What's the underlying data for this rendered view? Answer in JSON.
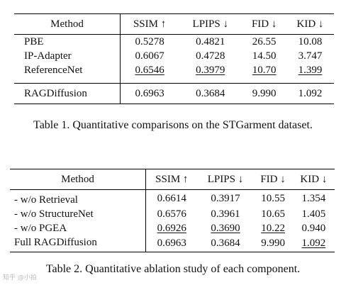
{
  "table1": {
    "headers": [
      "Method",
      "SSIM ↑",
      "LPIPS ↓",
      "FID ↓",
      "KID ↓"
    ],
    "rows": [
      {
        "method": "PBE",
        "ssim": "0.5278",
        "lpips": "0.4821",
        "fid": "26.55",
        "kid": "10.08"
      },
      {
        "method": "IP-Adapter",
        "ssim": "0.6067",
        "lpips": "0.4728",
        "fid": "14.50",
        "kid": "3.747"
      },
      {
        "method": "ReferenceNet",
        "ssim": "0.6546",
        "lpips": "0.3979",
        "fid": "10.70",
        "kid": "1.399"
      }
    ],
    "best": {
      "method": "RAGDiffusion",
      "ssim": "0.6963",
      "lpips": "0.3684",
      "fid": "9.990",
      "kid": "1.092"
    },
    "caption": "Table 1. Quantitative comparisons on the STGarment dataset."
  },
  "table2": {
    "headers": [
      "Method",
      "SSIM ↑",
      "LPIPS ↓",
      "FID ↓",
      "KID ↓"
    ],
    "rows": [
      {
        "method": "- w/o Retrieval",
        "ssim": "0.6614",
        "lpips": "0.3917",
        "fid": "10.55",
        "kid": "1.354"
      },
      {
        "method": "- w/o StructureNet",
        "ssim": "0.6576",
        "lpips": "0.3961",
        "fid": "10.65",
        "kid": "1.405"
      },
      {
        "method": "- w/o PGEA",
        "ssim": "0.6926",
        "lpips": "0.3690",
        "fid": "10.22",
        "kid": "0.940"
      },
      {
        "method": "Full RAGDiffusion",
        "ssim": "0.6963",
        "lpips": "0.3684",
        "fid": "9.990",
        "kid": "1.092"
      }
    ],
    "caption": "Table 2. Quantitative ablation study of each component."
  },
  "watermark": "知乎 @小拍"
}
